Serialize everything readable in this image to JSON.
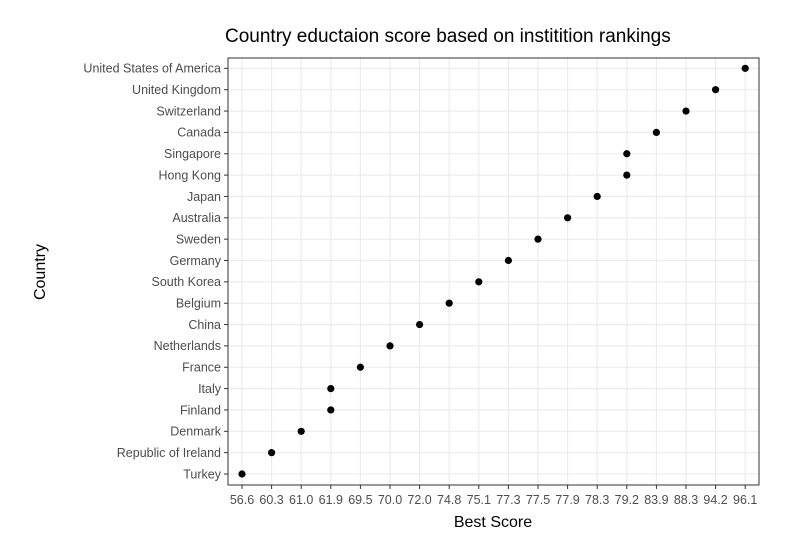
{
  "chart_data": {
    "type": "scatter",
    "title": "Country eductaion score based on institition rankings",
    "xlabel": "Best Score",
    "ylabel": "Country",
    "x_tick_labels": [
      "56.6",
      "60.3",
      "61.0",
      "61.9",
      "69.5",
      "70.0",
      "72.0",
      "74.8",
      "75.1",
      "77.3",
      "77.5",
      "77.9",
      "78.3",
      "79.2",
      "83.9",
      "88.3",
      "94.2",
      "96.1"
    ],
    "categories": [
      "Turkey",
      "Republic of Ireland",
      "Denmark",
      "Finland",
      "Italy",
      "France",
      "Netherlands",
      "China",
      "Belgium",
      "South Korea",
      "Germany",
      "Sweden",
      "Australia",
      "Japan",
      "Hong Kong",
      "Singapore",
      "Canada",
      "Switzerland",
      "United Kingdom",
      "United States of America"
    ],
    "values": [
      "56.6",
      "60.3",
      "61.0",
      "61.9",
      "61.9",
      "69.5",
      "70.0",
      "72.0",
      "74.8",
      "75.1",
      "77.3",
      "77.5",
      "77.9",
      "78.3",
      "79.2",
      "79.2",
      "83.9",
      "88.3",
      "94.2",
      "96.1"
    ],
    "grid": true,
    "legend": "none",
    "colors": {
      "point": "#000000",
      "panel_border": "#333333",
      "grid": "#ebebeb",
      "tick_label": "#4d4d4d"
    }
  }
}
